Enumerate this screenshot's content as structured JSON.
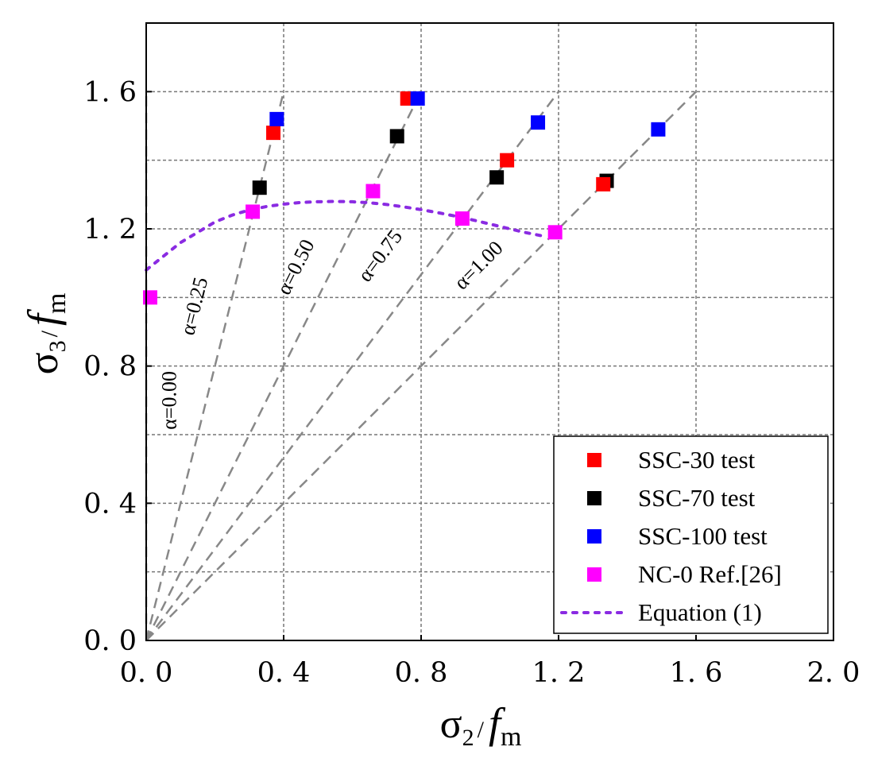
{
  "chart_data": {
    "type": "scatter",
    "title": "",
    "xlabel": {
      "base": "σ",
      "sub": "2",
      "slash": "/",
      "f": "f",
      "fsub": "m"
    },
    "ylabel": {
      "base": "σ",
      "sub": "3",
      "slash": "/",
      "f": "f",
      "fsub": "m"
    },
    "xlim": [
      0,
      2.0
    ],
    "ylim": [
      0,
      1.8
    ],
    "xticks": [
      0.0,
      0.4,
      0.8,
      1.2,
      1.6,
      2.0
    ],
    "xtick_labels": [
      "0. 0",
      "0. 4",
      "0. 8",
      "1. 2",
      "1. 6",
      "2. 0"
    ],
    "yticks": [
      0.0,
      0.4,
      0.8,
      1.2,
      1.6
    ],
    "ytick_labels": [
      "0. 0",
      "0. 4",
      "0. 8",
      "1. 2",
      "1. 6"
    ],
    "grid_x": [
      0.4,
      0.8,
      1.2,
      1.6
    ],
    "grid_y": [
      0.2,
      0.4,
      0.6,
      0.8,
      1.0,
      1.2,
      1.4,
      1.6
    ],
    "grid": true,
    "legend_position": "bottom-right",
    "alpha_lines": [
      {
        "label": "α=0.00",
        "end": [
          0.0,
          1.6
        ]
      },
      {
        "label": "α=0.25",
        "end": [
          0.4,
          1.6
        ]
      },
      {
        "label": "α=0.50",
        "end": [
          0.8,
          1.6
        ]
      },
      {
        "label": "α=0.75",
        "end": [
          1.2,
          1.6
        ]
      },
      {
        "label": "α=1.00",
        "end": [
          1.6,
          1.6
        ]
      }
    ],
    "series": [
      {
        "name": "SSC-30 test",
        "color": "#ff0000",
        "marker": "square",
        "points": [
          [
            0.37,
            1.48
          ],
          [
            0.76,
            1.58
          ],
          [
            1.05,
            1.4
          ],
          [
            1.33,
            1.33
          ]
        ]
      },
      {
        "name": "SSC-70 test",
        "color": "#000000",
        "marker": "square",
        "points": [
          [
            0.33,
            1.32
          ],
          [
            0.73,
            1.47
          ],
          [
            1.02,
            1.35
          ],
          [
            1.34,
            1.34
          ]
        ]
      },
      {
        "name": "SSC-100 test",
        "color": "#0000ff",
        "marker": "square",
        "points": [
          [
            0.38,
            1.52
          ],
          [
            0.79,
            1.58
          ],
          [
            1.14,
            1.51
          ],
          [
            1.49,
            1.49
          ]
        ]
      },
      {
        "name": "NC-0  Ref.[26]",
        "color": "#ff00ff",
        "marker": "square",
        "points": [
          [
            0.0,
            1.0
          ],
          [
            0.31,
            1.25
          ],
          [
            0.66,
            1.31
          ],
          [
            0.92,
            1.23
          ],
          [
            1.19,
            1.19
          ]
        ]
      },
      {
        "name": "Equation (1)",
        "color": "#8a2be2",
        "style": "dotted",
        "points": [
          [
            0.0,
            1.08
          ],
          [
            0.05,
            1.12
          ],
          [
            0.1,
            1.16
          ],
          [
            0.15,
            1.19
          ],
          [
            0.2,
            1.22
          ],
          [
            0.25,
            1.24
          ],
          [
            0.3,
            1.255
          ],
          [
            0.35,
            1.265
          ],
          [
            0.4,
            1.272
          ],
          [
            0.45,
            1.277
          ],
          [
            0.5,
            1.279
          ],
          [
            0.55,
            1.28
          ],
          [
            0.6,
            1.279
          ],
          [
            0.65,
            1.276
          ],
          [
            0.7,
            1.271
          ],
          [
            0.75,
            1.264
          ],
          [
            0.8,
            1.256
          ],
          [
            0.85,
            1.247
          ],
          [
            0.9,
            1.237
          ],
          [
            0.95,
            1.226
          ],
          [
            1.0,
            1.214
          ],
          [
            1.05,
            1.202
          ],
          [
            1.1,
            1.19
          ],
          [
            1.15,
            1.18
          ]
        ]
      }
    ]
  }
}
